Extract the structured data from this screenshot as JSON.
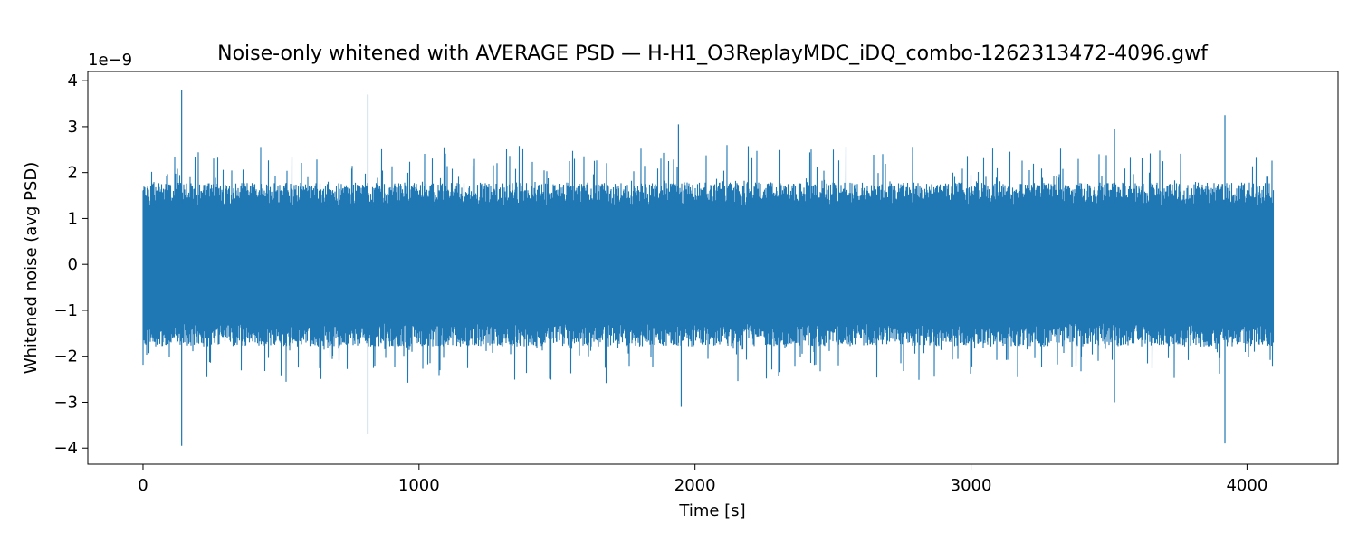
{
  "chart_data": {
    "type": "line",
    "title": "Noise-only whitened with AVERAGE PSD — H-H1_O3ReplayMDC_iDQ_combo-1262313472-4096.gwf",
    "xlabel": "Time [s]",
    "ylabel": "Whitened noise (avg PSD)",
    "y_offset_label": "1e−9",
    "y_scale": 1e-09,
    "xlim": [
      -200,
      4330
    ],
    "ylim": [
      -4.35,
      4.2
    ],
    "x_ticks": [
      0,
      1000,
      2000,
      3000,
      4000
    ],
    "x_tick_labels": [
      "0",
      "1000",
      "2000",
      "3000",
      "4000"
    ],
    "y_ticks": [
      -4,
      -3,
      -2,
      -1,
      0,
      1,
      2,
      3,
      4
    ],
    "y_tick_labels": [
      "−4",
      "−3",
      "−2",
      "−1",
      "0",
      "1",
      "2",
      "3",
      "4"
    ],
    "grid": false,
    "legend": "none",
    "series": [
      {
        "color": "#1f77b4",
        "x_range": [
          0,
          4096
        ],
        "typical_envelope": [
          -1.7,
          1.7
        ],
        "notable_peaks": [
          {
            "x": 140,
            "y": 3.8
          },
          {
            "x": 140,
            "y": -3.95
          },
          {
            "x": 815,
            "y": 3.7
          },
          {
            "x": 815,
            "y": -3.7
          },
          {
            "x": 1940,
            "y": 3.05
          },
          {
            "x": 1950,
            "y": -3.1
          },
          {
            "x": 3520,
            "y": 2.95
          },
          {
            "x": 3520,
            "y": -3.0
          },
          {
            "x": 3920,
            "y": 3.25
          },
          {
            "x": 3920,
            "y": -3.9
          }
        ]
      }
    ]
  }
}
